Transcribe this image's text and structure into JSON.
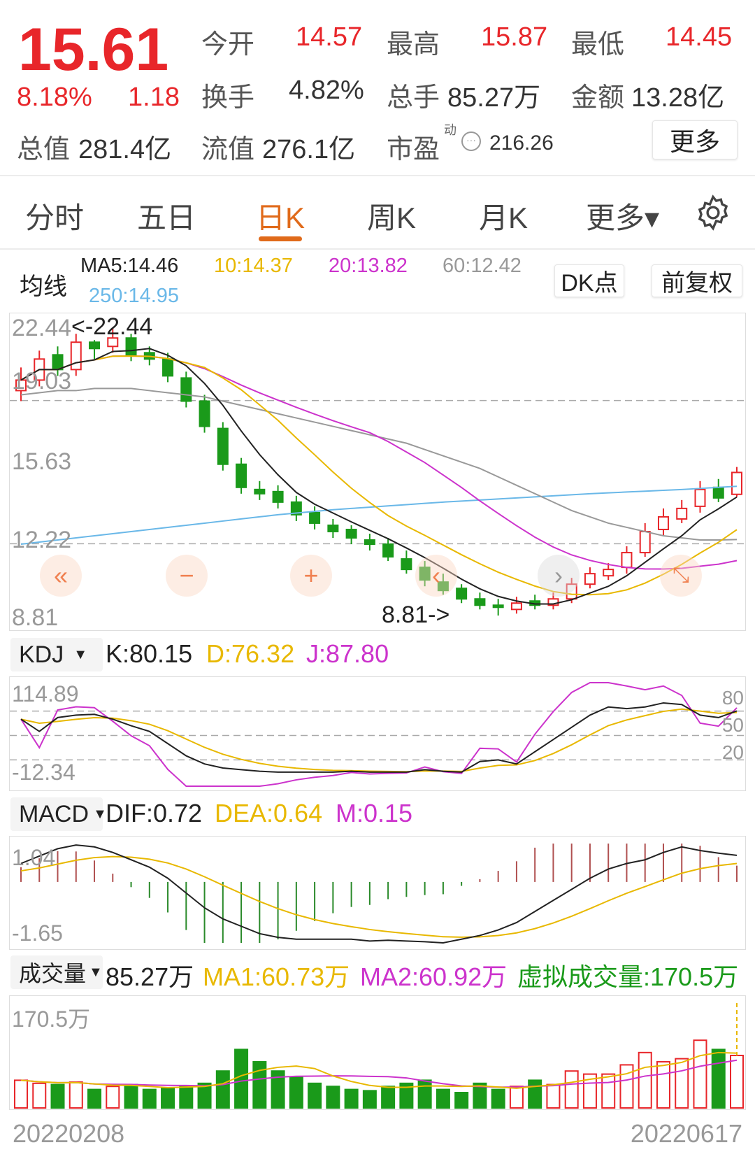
{
  "quote": {
    "price": "15.61",
    "change_pct": "8.18%",
    "change": "1.18",
    "open_label": "今开",
    "open": "14.57",
    "high_label": "最高",
    "high": "15.87",
    "low_label": "最低",
    "low": "14.45",
    "turnover_label": "换手",
    "turnover": "4.82%",
    "volume_label": "总手",
    "volume": "85.27万",
    "amount_label": "金额",
    "amount": "13.28亿",
    "mktcap_label": "总值",
    "mktcap": "281.4亿",
    "float_label": "流值",
    "float_cap": "276.1亿",
    "pe_label": "市盈",
    "pe_sup": "动",
    "pe": "216.26",
    "more_label": "更多"
  },
  "tabs": [
    {
      "label": "分时"
    },
    {
      "label": "五日"
    },
    {
      "label": "日K",
      "active": true
    },
    {
      "label": "周K"
    },
    {
      "label": "月K"
    },
    {
      "label": "更多▾"
    }
  ],
  "ma": {
    "label": "均线",
    "ma5": "MA5:14.46",
    "ma10": "10:14.37",
    "ma20": "20:13.82",
    "ma60": "60:12.42",
    "ma250": "250:14.95",
    "dk_label": "DK点",
    "adjust_label": "前复权"
  },
  "colors": {
    "up": "#e8262a",
    "down": "#1a9a1a",
    "ma5": "#222222",
    "ma10": "#e8b800",
    "ma20": "#cc33cc",
    "ma60": "#999999",
    "ma250": "#6ab8e8",
    "accent": "#e06a1a"
  },
  "kdj": {
    "selector": "KDJ",
    "k": "K:80.15",
    "d": "D:76.32",
    "j": "J:87.80",
    "max": "114.89",
    "min": "-12.34",
    "levels": [
      "80",
      "50",
      "20"
    ]
  },
  "macd": {
    "selector": "MACD",
    "dif": "DIF:0.72",
    "dea": "DEA:0.64",
    "m": "M:0.15",
    "max": "1.04",
    "min": "-1.65"
  },
  "vol": {
    "selector": "成交量",
    "value": "85.27万",
    "ma1": "MA1:60.73万",
    "ma2": "MA2:60.92万",
    "virtual": "虚拟成交量:170.5万",
    "max": "170.5万"
  },
  "dates": {
    "start": "20220208",
    "end": "20220617"
  },
  "chart_data": {
    "type": "candlestick",
    "y_labels": [
      "22.44",
      "19.03",
      "15.63",
      "12.22",
      "8.81"
    ],
    "ylim": [
      8.81,
      22.44
    ],
    "high_mark": "<-22.44",
    "low_mark": "8.81->",
    "open": [
      19.5,
      20.0,
      21.2,
      20.5,
      21.8,
      21.6,
      22.0,
      21.3,
      21.0,
      20.1,
      19.0,
      17.7,
      16.0,
      14.8,
      14.7,
      14.2,
      13.7,
      13.1,
      12.9,
      12.4,
      12.2,
      11.5,
      11.1,
      10.4,
      10.1,
      9.6,
      9.3,
      9.1,
      9.5,
      9.3,
      9.6,
      10.3,
      10.7,
      11.1,
      11.8,
      12.9,
      13.4,
      14.0,
      14.9,
      14.57
    ],
    "high": [
      20.6,
      21.4,
      21.6,
      22.2,
      21.9,
      22.44,
      22.2,
      21.6,
      21.3,
      20.4,
      19.3,
      18.0,
      16.3,
      15.2,
      15.0,
      14.5,
      14.0,
      13.4,
      13.1,
      12.7,
      12.5,
      11.9,
      11.4,
      10.8,
      10.3,
      9.9,
      9.6,
      9.7,
      9.8,
      9.9,
      10.6,
      11.1,
      11.3,
      12.1,
      13.2,
      13.9,
      14.3,
      15.2,
      15.3,
      15.87
    ],
    "low": [
      19.0,
      19.7,
      20.2,
      20.2,
      21.0,
      21.3,
      20.9,
      20.7,
      19.9,
      18.7,
      17.5,
      15.7,
      14.6,
      14.3,
      13.9,
      13.3,
      12.9,
      12.5,
      12.2,
      11.9,
      11.4,
      10.8,
      10.2,
      9.8,
      9.4,
      9.1,
      8.81,
      8.9,
      9.1,
      9.1,
      9.4,
      10.1,
      10.5,
      10.8,
      11.6,
      12.6,
      13.2,
      13.7,
      14.2,
      14.45
    ],
    "close": [
      20.0,
      21.0,
      20.5,
      21.8,
      21.5,
      22.0,
      21.2,
      21.0,
      20.2,
      19.0,
      17.8,
      16.0,
      14.9,
      14.6,
      14.2,
      13.6,
      13.2,
      12.8,
      12.5,
      12.2,
      11.6,
      11.0,
      10.5,
      10.0,
      9.6,
      9.3,
      9.2,
      9.4,
      9.3,
      9.6,
      10.3,
      10.8,
      11.0,
      11.8,
      12.8,
      13.5,
      13.9,
      14.8,
      14.4,
      15.61
    ],
    "ma60": [
      19.3,
      19.4,
      19.5,
      19.5,
      19.6,
      19.6,
      19.6,
      19.5,
      19.4,
      19.3,
      19.2,
      19.0,
      18.8,
      18.6,
      18.4,
      18.2,
      18.0,
      17.8,
      17.6,
      17.4,
      17.2,
      17.0,
      16.7,
      16.4,
      16.1,
      15.8,
      15.4,
      15.0,
      14.6,
      14.2,
      13.8,
      13.5,
      13.2,
      13.0,
      12.8,
      12.6,
      12.5,
      12.4,
      12.4,
      12.42
    ],
    "ma250": [
      12.2,
      12.3,
      12.4,
      12.5,
      12.6,
      12.7,
      12.8,
      12.9,
      13.0,
      13.1,
      13.2,
      13.3,
      13.4,
      13.5,
      13.6,
      13.68,
      13.76,
      13.84,
      13.9,
      13.96,
      14.02,
      14.08,
      14.14,
      14.2,
      14.25,
      14.3,
      14.35,
      14.4,
      14.45,
      14.5,
      14.55,
      14.6,
      14.64,
      14.68,
      14.72,
      14.76,
      14.8,
      14.85,
      14.9,
      14.95
    ],
    "volume": [
      45,
      40,
      38,
      42,
      30,
      35,
      38,
      30,
      32,
      35,
      40,
      60,
      95,
      75,
      60,
      50,
      40,
      35,
      30,
      28,
      35,
      40,
      45,
      30,
      25,
      40,
      30,
      35,
      45,
      38,
      60,
      55,
      55,
      70,
      90,
      75,
      80,
      110,
      95,
      85.27
    ],
    "volume_max": 170.5,
    "virtual_volume": 170.5,
    "kdj_k": [
      70,
      55,
      72,
      75,
      76,
      70,
      62,
      55,
      40,
      25,
      15,
      10,
      8,
      6,
      5,
      5,
      5,
      5,
      6,
      5,
      5,
      5,
      8,
      6,
      5,
      18,
      20,
      15,
      30,
      45,
      60,
      75,
      85,
      83,
      85,
      90,
      88,
      75,
      72,
      80.15
    ],
    "kdj_range": [
      -12.34,
      114.89
    ],
    "macd_dif": [
      0.5,
      0.7,
      0.9,
      1.0,
      0.95,
      0.8,
      0.6,
      0.4,
      0.1,
      -0.3,
      -0.7,
      -1.0,
      -1.2,
      -1.4,
      -1.5,
      -1.55,
      -1.55,
      -1.55,
      -1.55,
      -1.6,
      -1.58,
      -1.6,
      -1.62,
      -1.65,
      -1.55,
      -1.45,
      -1.3,
      -1.1,
      -0.8,
      -0.5,
      -0.2,
      0.1,
      0.35,
      0.5,
      0.6,
      0.8,
      0.95,
      0.85,
      0.78,
      0.72
    ],
    "macd_range": [
      -1.65,
      1.04
    ]
  }
}
